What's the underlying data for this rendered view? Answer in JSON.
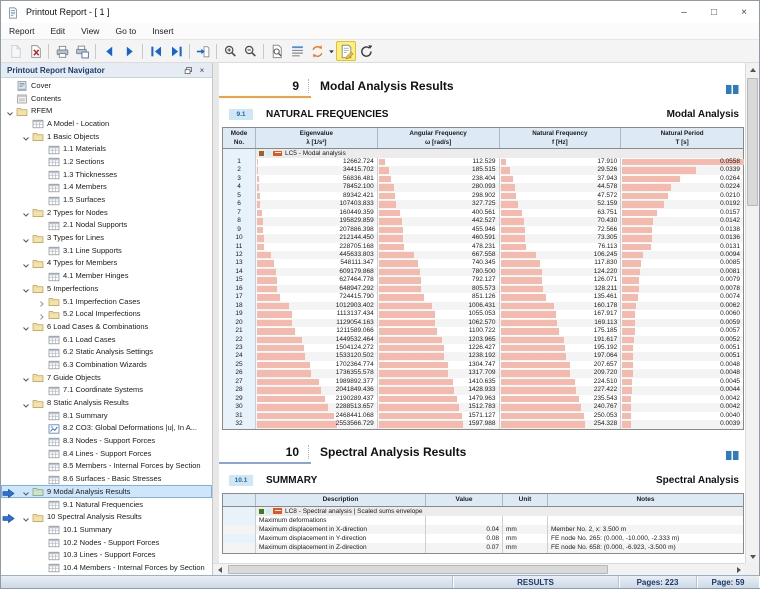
{
  "window": {
    "title": "Printout Report - [ 1 ]",
    "controls": {
      "minimize": "–",
      "maximize": "□",
      "close": "×"
    }
  },
  "menu": [
    {
      "label": "Report"
    },
    {
      "label": "Edit"
    },
    {
      "label": "View"
    },
    {
      "label": "Go to"
    },
    {
      "label": "Insert"
    }
  ],
  "toolbar": [
    {
      "name": "new-page",
      "state": "disabled"
    },
    {
      "name": "delete-page"
    },
    {
      "sep": true
    },
    {
      "name": "print"
    },
    {
      "name": "print-options"
    },
    {
      "sep": true
    },
    {
      "name": "prev-page"
    },
    {
      "name": "next-page"
    },
    {
      "sep": true
    },
    {
      "name": "first-page"
    },
    {
      "name": "last-page"
    },
    {
      "sep": true
    },
    {
      "name": "go-to-page"
    },
    {
      "sep": true
    },
    {
      "name": "zoom-in"
    },
    {
      "name": "zoom-out"
    },
    {
      "sep": true
    },
    {
      "name": "fit-page"
    },
    {
      "name": "table-rows"
    },
    {
      "name": "sync-settings",
      "dropdown": true
    },
    {
      "name": "edit-report",
      "state": "active"
    },
    {
      "name": "refresh"
    }
  ],
  "navigator": {
    "title": "Printout Report Navigator",
    "items": [
      {
        "label": "Cover",
        "icon": "cover",
        "indent": 0
      },
      {
        "label": "Contents",
        "icon": "contents",
        "indent": 0
      },
      {
        "label": "RFEM",
        "icon": "folder",
        "indent": 0,
        "chevron": "open"
      },
      {
        "label": "A Model - Location",
        "icon": "table",
        "indent": 1
      },
      {
        "label": "1 Basic Objects",
        "icon": "folder",
        "indent": 1,
        "chevron": "open"
      },
      {
        "label": "1.1 Materials",
        "icon": "table",
        "indent": 2
      },
      {
        "label": "1.2 Sections",
        "icon": "table",
        "indent": 2
      },
      {
        "label": "1.3 Thicknesses",
        "icon": "table",
        "indent": 2
      },
      {
        "label": "1.4 Members",
        "icon": "table",
        "indent": 2
      },
      {
        "label": "1.5 Surfaces",
        "icon": "table",
        "indent": 2
      },
      {
        "label": "2 Types for Nodes",
        "icon": "folder",
        "indent": 1,
        "chevron": "open"
      },
      {
        "label": "2.1 Nodal Supports",
        "icon": "table",
        "indent": 2
      },
      {
        "label": "3 Types for Lines",
        "icon": "folder",
        "indent": 1,
        "chevron": "open"
      },
      {
        "label": "3.1 Line Supports",
        "icon": "table",
        "indent": 2
      },
      {
        "label": "4 Types for Members",
        "icon": "folder",
        "indent": 1,
        "chevron": "open"
      },
      {
        "label": "4.1 Member Hinges",
        "icon": "table",
        "indent": 2
      },
      {
        "label": "5 Imperfections",
        "icon": "folder",
        "indent": 1,
        "chevron": "open"
      },
      {
        "label": "5.1 Imperfection Cases",
        "icon": "folder",
        "indent": 2,
        "chevron": "closed"
      },
      {
        "label": "5.2 Local Imperfections",
        "icon": "folder",
        "indent": 2,
        "chevron": "closed"
      },
      {
        "label": "6 Load Cases & Combinations",
        "icon": "folder",
        "indent": 1,
        "chevron": "open"
      },
      {
        "label": "6.1 Load Cases",
        "icon": "table",
        "indent": 2
      },
      {
        "label": "6.2 Static Analysis Settings",
        "icon": "table",
        "indent": 2
      },
      {
        "label": "6.3 Combination Wizards",
        "icon": "table",
        "indent": 2
      },
      {
        "label": "7 Guide Objects",
        "icon": "folder",
        "indent": 1,
        "chevron": "open"
      },
      {
        "label": "7.1 Coordinate Systems",
        "icon": "table",
        "indent": 2
      },
      {
        "label": "8 Static Analysis Results",
        "icon": "folder",
        "indent": 1,
        "chevron": "open"
      },
      {
        "label": "8.1 Summary",
        "icon": "table",
        "indent": 2
      },
      {
        "label": "8.2 CO3: Global Deformations |u|, In A...",
        "icon": "chart",
        "indent": 2
      },
      {
        "label": "8.3 Nodes - Support Forces",
        "icon": "table",
        "indent": 2
      },
      {
        "label": "8.4 Lines - Support Forces",
        "icon": "table",
        "indent": 2
      },
      {
        "label": "8.5 Members - Internal Forces by Section",
        "icon": "table",
        "indent": 2
      },
      {
        "label": "8.6 Surfaces - Basic Stresses",
        "icon": "table",
        "indent": 2
      },
      {
        "label": "9 Modal Analysis Results",
        "icon": "folder-green",
        "indent": 1,
        "chevron": "open",
        "selected": true,
        "marker": true
      },
      {
        "label": "9.1 Natural Frequencies",
        "icon": "table",
        "indent": 2
      },
      {
        "label": "10 Spectral Analysis Results",
        "icon": "folder",
        "indent": 1,
        "chevron": "open",
        "marker": true
      },
      {
        "label": "10.1 Summary",
        "icon": "table",
        "indent": 2
      },
      {
        "label": "10.2 Nodes - Support Forces",
        "icon": "table",
        "indent": 2
      },
      {
        "label": "10.3 Lines - Support Forces",
        "icon": "table",
        "indent": 2
      },
      {
        "label": "10.4 Members - Internal Forces by Section",
        "icon": "table",
        "indent": 2
      }
    ]
  },
  "report": {
    "chapter9": {
      "number": "9",
      "title": "Modal Analysis Results",
      "accent": "#efa33f"
    },
    "section91": {
      "number": "9.1",
      "title": "NATURAL FREQUENCIES",
      "right_label": "Modal Analysis"
    },
    "chapter10": {
      "number": "10",
      "title": "Spectral Analysis Results",
      "accent": "#8ca3d8"
    },
    "section101": {
      "number": "10.1",
      "title": "SUMMARY",
      "right_label": "Spectral Analysis"
    }
  },
  "modal_table": {
    "case_label": "LC5 - Modal analysis",
    "case_colors": [
      "#a0622d",
      "#cdeef6"
    ],
    "bar_color": "#f5b9ae",
    "headers": [
      [
        "Mode",
        "No."
      ],
      [
        "Eigenvalue",
        "λ [1/s²]"
      ],
      [
        "Angular Frequency",
        "ω [rad/s]"
      ],
      [
        "Natural Frequency",
        "f [Hz]"
      ],
      [
        "Natural Period",
        "T [s]"
      ]
    ],
    "rows": [
      [
        1,
        "12662.724",
        "112.529",
        "17.910",
        "0.0558"
      ],
      [
        2,
        "34415.702",
        "185.515",
        "29.526",
        "0.0339"
      ],
      [
        3,
        "56836.481",
        "238.404",
        "37.943",
        "0.0264"
      ],
      [
        4,
        "78452.100",
        "280.093",
        "44.578",
        "0.0224"
      ],
      [
        5,
        "89342.421",
        "298.902",
        "47.572",
        "0.0210"
      ],
      [
        6,
        "107403.833",
        "327.725",
        "52.159",
        "0.0192"
      ],
      [
        7,
        "160449.359",
        "400.561",
        "63.751",
        "0.0157"
      ],
      [
        8,
        "195829.859",
        "442.527",
        "70.430",
        "0.0142"
      ],
      [
        9,
        "207886.398",
        "455.946",
        "72.566",
        "0.0138"
      ],
      [
        10,
        "212144.450",
        "460.591",
        "73.305",
        "0.0136"
      ],
      [
        11,
        "228705.168",
        "478.231",
        "76.113",
        "0.0131"
      ],
      [
        12,
        "445633.803",
        "667.558",
        "106.245",
        "0.0094"
      ],
      [
        13,
        "548111.347",
        "740.345",
        "117.830",
        "0.0085"
      ],
      [
        14,
        "609179.868",
        "780.500",
        "124.220",
        "0.0081"
      ],
      [
        15,
        "627464.778",
        "792.127",
        "126.071",
        "0.0079"
      ],
      [
        16,
        "648947.292",
        "805.573",
        "128.211",
        "0.0078"
      ],
      [
        17,
        "724415.790",
        "851.126",
        "135.461",
        "0.0074"
      ],
      [
        18,
        "1012903.402",
        "1006.431",
        "160.178",
        "0.0062"
      ],
      [
        19,
        "1113137.434",
        "1055.053",
        "167.917",
        "0.0060"
      ],
      [
        20,
        "1129054.163",
        "1062.570",
        "169.113",
        "0.0059"
      ],
      [
        21,
        "1211589.066",
        "1100.722",
        "175.185",
        "0.0057"
      ],
      [
        22,
        "1449532.464",
        "1203.965",
        "191.617",
        "0.0052"
      ],
      [
        23,
        "1504124.272",
        "1226.427",
        "195.192",
        "0.0051"
      ],
      [
        24,
        "1533120.502",
        "1238.192",
        "197.064",
        "0.0051"
      ],
      [
        25,
        "1702364.774",
        "1304.747",
        "207.657",
        "0.0048"
      ],
      [
        26,
        "1736355.578",
        "1317.709",
        "209.720",
        "0.0048"
      ],
      [
        27,
        "1989892.377",
        "1410.635",
        "224.510",
        "0.0045"
      ],
      [
        28,
        "2041849.436",
        "1428.933",
        "227.422",
        "0.0044"
      ],
      [
        29,
        "2190289.437",
        "1479.963",
        "235.543",
        "0.0042"
      ],
      [
        30,
        "2288513.657",
        "1512.783",
        "240.767",
        "0.0042"
      ],
      [
        31,
        "2468441.068",
        "1571.127",
        "250.053",
        "0.0040"
      ],
      [
        32,
        "2553566.729",
        "1597.988",
        "254.328",
        "0.0039"
      ]
    ]
  },
  "summary_table": {
    "case_label": "LC8 - Spectral analysis | Scaled sums envelope",
    "case_colors": [
      "#3c7d21",
      "#cdeef6"
    ],
    "headers": [
      "",
      "Description",
      "Value",
      "Unit",
      "Notes"
    ],
    "rows": [
      [
        "Maximum deformations",
        "",
        "",
        ""
      ],
      [
        "Maximum displacement in X-direction",
        "0.04",
        "mm",
        "Member No. 2, x: 3.500 m"
      ],
      [
        "Maximum displacement in Y-direction",
        "0.08",
        "mm",
        "FE node No. 265: (0.000, -10.000, -2.333 m)"
      ],
      [
        "Maximum displacement in Z-direction",
        "0.07",
        "mm",
        "FE node No. 658: (0.000, -6.923, -3.500 m)"
      ]
    ]
  },
  "statusbar": {
    "results": "RESULTS",
    "pages": "Pages: 223",
    "page": "Page: 59"
  }
}
